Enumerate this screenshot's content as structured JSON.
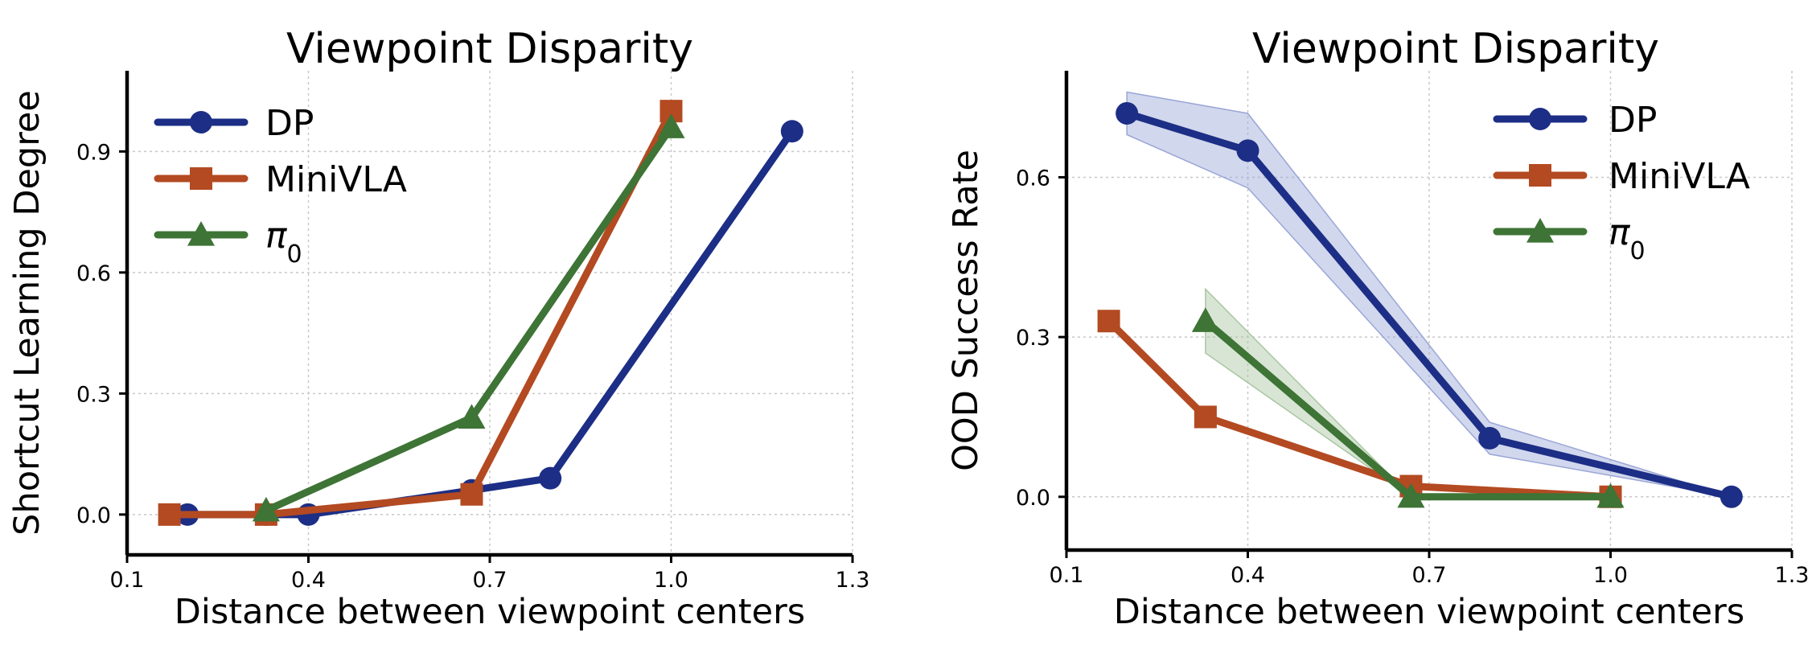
{
  "chart_data": [
    {
      "type": "line",
      "title": "Viewpoint Disparity",
      "xlabel": "Distance between viewpoint centers",
      "ylabel": "Shortcut Learning Degree",
      "xlim": [
        0.1,
        1.3
      ],
      "ylim": [
        -0.1,
        1.1
      ],
      "xticks": [
        0.1,
        0.4,
        0.7,
        1.0,
        1.3
      ],
      "xtick_labels": [
        "0.1",
        "0.4",
        "0.7",
        "1.0",
        "1.3"
      ],
      "yticks": [
        0.0,
        0.3,
        0.6,
        0.9
      ],
      "ytick_labels": [
        "0.0",
        "0.3",
        "0.6",
        "0.9"
      ],
      "grid": true,
      "legend": "top-left",
      "series": [
        {
          "name": "DP",
          "color": "#1c2e85",
          "marker": "circle",
          "x": [
            0.2,
            0.33,
            0.4,
            0.67,
            0.8,
            1.2
          ],
          "y": [
            0.0,
            0.0,
            0.0,
            0.06,
            0.09,
            0.95
          ]
        },
        {
          "name": "MiniVLA",
          "color": "#b34a22",
          "marker": "square",
          "x": [
            0.17,
            0.33,
            0.67,
            1.0
          ],
          "y": [
            0.0,
            0.0,
            0.05,
            1.0
          ]
        },
        {
          "name": "π",
          "name_sub": "0",
          "color": "#3e7435",
          "marker": "triangle",
          "x": [
            0.33,
            0.67,
            1.0
          ],
          "y": [
            0.01,
            0.24,
            0.96
          ]
        }
      ]
    },
    {
      "type": "line",
      "title": "Viewpoint Disparity",
      "xlabel": "Distance between viewpoint centers",
      "ylabel": "OOD Success Rate",
      "xlim": [
        0.1,
        1.3
      ],
      "ylim": [
        -0.1,
        0.8
      ],
      "xticks": [
        0.1,
        0.4,
        0.7,
        1.0,
        1.3
      ],
      "xtick_labels": [
        "0.1",
        "0.4",
        "0.7",
        "1.0",
        "1.3"
      ],
      "yticks": [
        0.0,
        0.3,
        0.6
      ],
      "ytick_labels": [
        "0.0",
        "0.3",
        "0.6"
      ],
      "grid": true,
      "legend": "top-right",
      "series": [
        {
          "name": "DP",
          "color": "#1c2e85",
          "marker": "circle",
          "x": [
            0.2,
            0.4,
            0.8,
            1.2
          ],
          "y": [
            0.72,
            0.65,
            0.11,
            0.0
          ],
          "band_low": [
            0.68,
            0.58,
            0.08,
            0.0
          ],
          "band_high": [
            0.76,
            0.72,
            0.14,
            0.0
          ],
          "band_color": "#9aa6d6"
        },
        {
          "name": "MiniVLA",
          "color": "#b34a22",
          "marker": "square",
          "x": [
            0.17,
            0.33,
            0.67,
            1.0
          ],
          "y": [
            0.33,
            0.15,
            0.02,
            0.0
          ]
        },
        {
          "name": "π",
          "name_sub": "0",
          "color": "#3e7435",
          "marker": "triangle",
          "x": [
            0.33,
            0.67,
            1.0
          ],
          "y": [
            0.33,
            0.0,
            0.0
          ],
          "band_low": [
            0.27,
            0.0,
            0.0
          ],
          "band_high": [
            0.39,
            0.0,
            0.0
          ],
          "band_color": "#a9c6a1"
        }
      ]
    }
  ]
}
